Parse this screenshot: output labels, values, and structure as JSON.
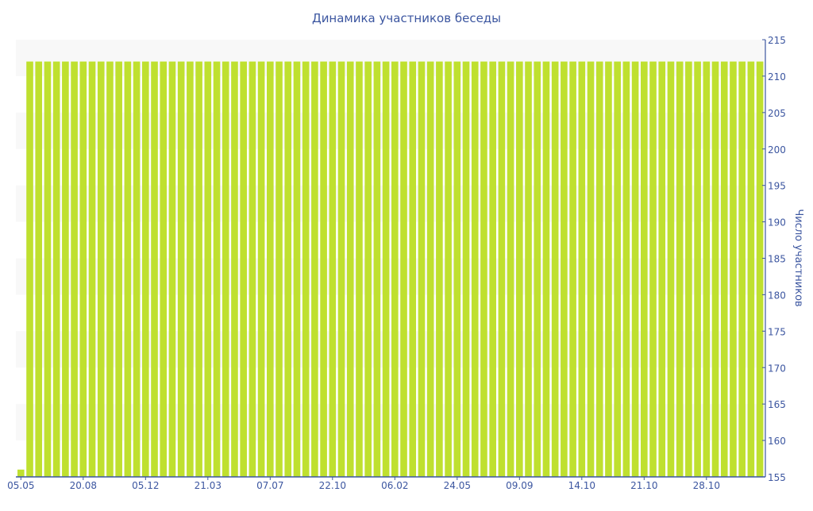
{
  "chart_data": {
    "type": "bar",
    "title": "Динамика участников беседы",
    "ylabel": "Число участников",
    "xlabel": "",
    "ylim": [
      155,
      215
    ],
    "yticks": [
      155,
      160,
      165,
      170,
      175,
      180,
      185,
      190,
      195,
      200,
      205,
      210,
      215
    ],
    "y_axis_side": "right",
    "x_tick_labels": [
      {
        "index": 0,
        "label": "05.05"
      },
      {
        "index": 7,
        "label": "20.08"
      },
      {
        "index": 14,
        "label": "05.12"
      },
      {
        "index": 21,
        "label": "21.03"
      },
      {
        "index": 28,
        "label": "07.07"
      },
      {
        "index": 35,
        "label": "22.10"
      },
      {
        "index": 42,
        "label": "06.02"
      },
      {
        "index": 49,
        "label": "24.05"
      },
      {
        "index": 56,
        "label": "09.09"
      },
      {
        "index": 63,
        "label": "14.10"
      },
      {
        "index": 70,
        "label": "21.10"
      },
      {
        "index": 77,
        "label": "28.10"
      }
    ],
    "values": [
      156,
      212,
      212,
      212,
      212,
      212,
      212,
      212,
      212,
      212,
      212,
      212,
      212,
      212,
      212,
      212,
      212,
      212,
      212,
      212,
      212,
      212,
      212,
      212,
      212,
      212,
      212,
      212,
      212,
      212,
      212,
      212,
      212,
      212,
      212,
      212,
      212,
      212,
      212,
      212,
      212,
      212,
      212,
      212,
      212,
      212,
      212,
      212,
      212,
      212,
      212,
      212,
      212,
      212,
      212,
      212,
      212,
      212,
      212,
      212,
      212,
      212,
      212,
      212,
      212,
      212,
      212,
      212,
      212,
      212,
      212,
      212,
      212,
      212,
      212,
      212,
      212,
      212,
      212,
      212,
      212,
      212,
      212,
      212
    ],
    "grid": "alternating-bands",
    "colors": {
      "bar": "#bfe02f",
      "axis": "#3c56a0",
      "band": "#f8f8f8"
    }
  }
}
